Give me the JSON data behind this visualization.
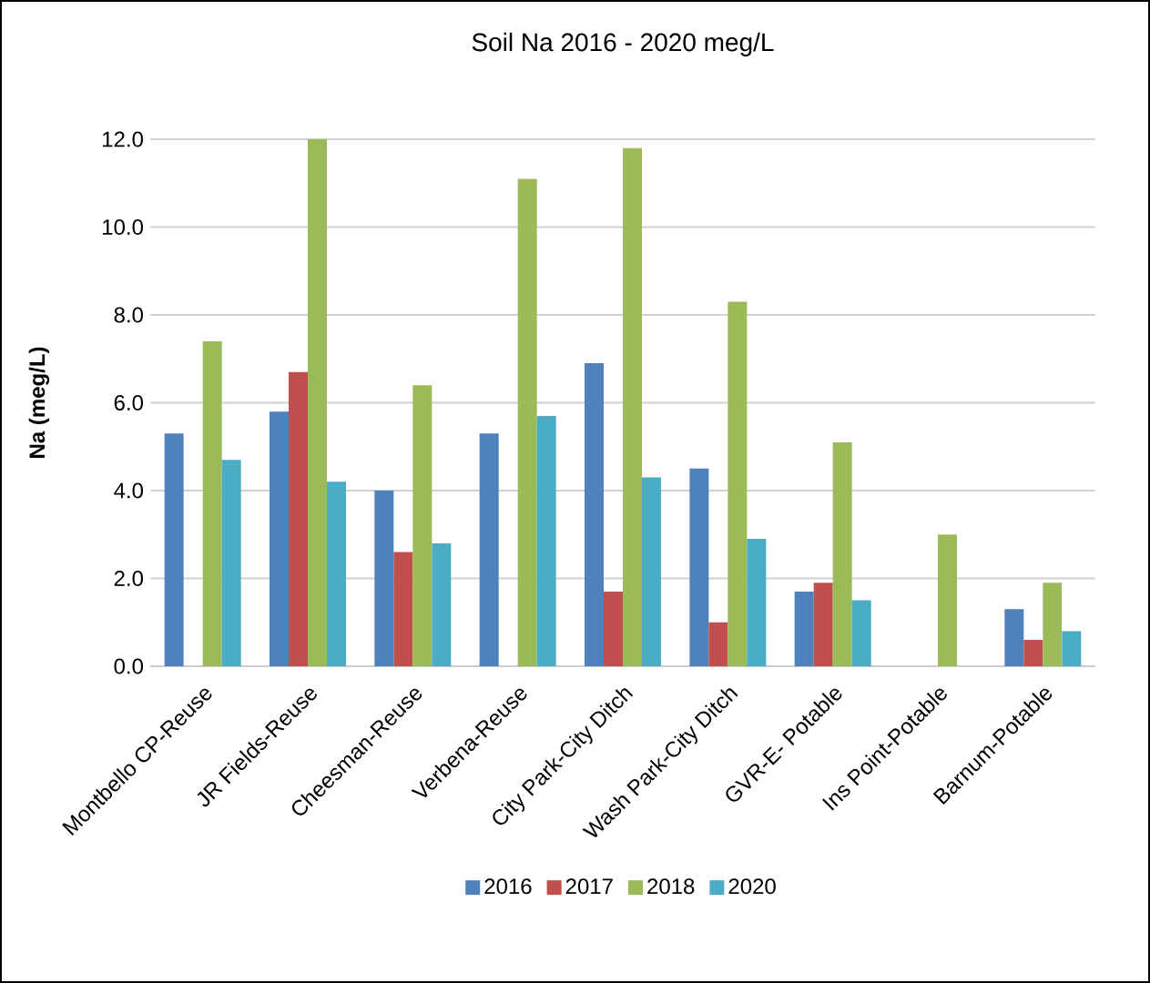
{
  "chart_data": {
    "type": "bar",
    "title": "Soil Na 2016 - 2020 meg/L",
    "ylabel": "Na (meg/L)",
    "categories": [
      "Montbello CP-Reuse",
      "JR Fields-Reuse",
      "Cheesman-Reuse",
      "Verbena-Reuse",
      "City Park-City Ditch",
      "Wash Park-City Ditch",
      "GVR-E- Potable",
      "Ins Point-Potable",
      "Barnum-Potable"
    ],
    "series": [
      {
        "name": "2016",
        "color": "#4f81bd",
        "values": [
          5.3,
          5.8,
          4.0,
          5.3,
          6.9,
          4.5,
          1.7,
          null,
          1.3
        ]
      },
      {
        "name": "2017",
        "color": "#c0504d",
        "values": [
          null,
          6.7,
          2.6,
          null,
          1.7,
          1.0,
          1.9,
          null,
          0.6
        ]
      },
      {
        "name": "2018",
        "color": "#9bbb59",
        "values": [
          7.4,
          12.0,
          6.4,
          11.1,
          11.8,
          8.3,
          5.1,
          3.0,
          1.9
        ]
      },
      {
        "name": "2020",
        "color": "#4bacc6",
        "values": [
          4.7,
          4.2,
          2.8,
          5.7,
          4.3,
          2.9,
          1.5,
          null,
          0.8
        ]
      }
    ],
    "ylim": [
      0,
      12
    ],
    "yticks": [
      {
        "value": 0,
        "label": "0.0"
      },
      {
        "value": 2,
        "label": "2.0"
      },
      {
        "value": 4,
        "label": "4.0"
      },
      {
        "value": 6,
        "label": "6.0"
      },
      {
        "value": 8,
        "label": "8.0"
      },
      {
        "value": 10,
        "label": "10.0"
      },
      {
        "value": 12,
        "label": "12.0"
      }
    ],
    "grid": "y",
    "legend": "bottom"
  }
}
